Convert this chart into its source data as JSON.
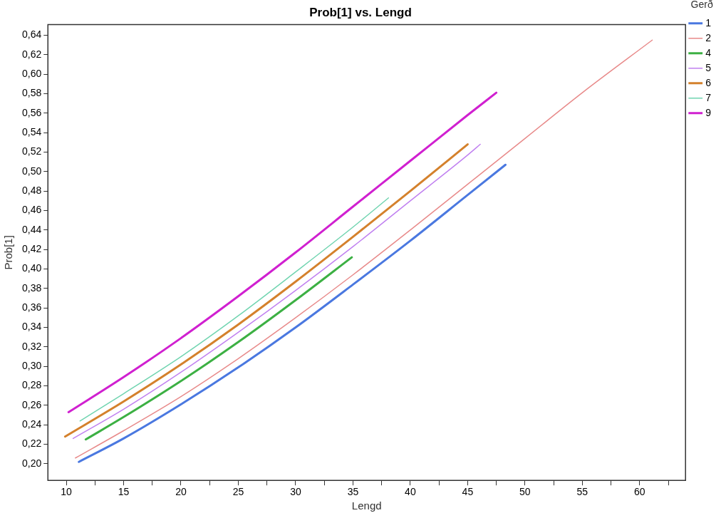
{
  "chart_data": {
    "type": "line",
    "title": "Prob[1] vs. Lengd",
    "xlabel": "Lengd",
    "ylabel": "Prob[1]",
    "legend_title": "Gerð",
    "legend": "top right",
    "grid": false,
    "marker": "none",
    "line_style": "solid",
    "xlim": [
      8.4,
      64.0
    ],
    "ylim": [
      0.183,
      0.651
    ],
    "xticks": [
      10,
      {
        "value": 12.5,
        "label": null
      },
      15,
      {
        "value": 17.5,
        "label": null
      },
      20,
      {
        "value": 22.5,
        "label": null
      },
      25,
      {
        "value": 27.5,
        "label": null
      },
      30,
      {
        "value": 32.5,
        "label": null
      },
      35,
      {
        "value": 37.5,
        "label": null
      },
      40,
      {
        "value": 42.5,
        "label": null
      },
      45,
      {
        "value": 47.5,
        "label": null
      },
      50,
      {
        "value": 52.5,
        "label": null
      },
      55,
      {
        "value": 57.5,
        "label": null
      },
      60,
      {
        "value": 62.5,
        "label": null
      }
    ],
    "yticks": [
      {
        "value": 0.2,
        "label": "0,20"
      },
      {
        "value": 0.22,
        "label": "0,22"
      },
      {
        "value": 0.24,
        "label": "0,24"
      },
      {
        "value": 0.26,
        "label": "0,26"
      },
      {
        "value": 0.28,
        "label": "0,28"
      },
      {
        "value": 0.3,
        "label": "0,30"
      },
      {
        "value": 0.32,
        "label": "0,32"
      },
      {
        "value": 0.34,
        "label": "0,34"
      },
      {
        "value": 0.36,
        "label": "0,36"
      },
      {
        "value": 0.38,
        "label": "0,38"
      },
      {
        "value": 0.4,
        "label": "0,40"
      },
      {
        "value": 0.42,
        "label": "0,42"
      },
      {
        "value": 0.44,
        "label": "0,44"
      },
      {
        "value": 0.46,
        "label": "0,46"
      },
      {
        "value": 0.48,
        "label": "0,48"
      },
      {
        "value": 0.5,
        "label": "0,50"
      },
      {
        "value": 0.52,
        "label": "0,52"
      },
      {
        "value": 0.54,
        "label": "0,54"
      },
      {
        "value": 0.56,
        "label": "0,56"
      },
      {
        "value": 0.58,
        "label": "0,58"
      },
      {
        "value": 0.6,
        "label": "0,60"
      },
      {
        "value": 0.62,
        "label": "0,62"
      },
      {
        "value": 0.64,
        "label": "0,64"
      }
    ],
    "series": [
      {
        "name": "1",
        "color": "#4a78e0",
        "x": [
          11.1,
          15,
          20,
          25,
          30,
          35,
          40,
          45,
          48.3
        ],
        "values": [
          0.202,
          0.226,
          0.261,
          0.299,
          0.34,
          0.384,
          0.429,
          0.476,
          0.507
        ]
      },
      {
        "name": "2",
        "color": "#e88a8a",
        "x": [
          10.8,
          15,
          20,
          25,
          30,
          35,
          40,
          45,
          50,
          55,
          61.1
        ],
        "values": [
          0.206,
          0.234,
          0.269,
          0.308,
          0.35,
          0.394,
          0.44,
          0.487,
          0.534,
          0.581,
          0.635
        ]
      },
      {
        "name": "4",
        "color": "#3cb043",
        "x": [
          11.7,
          15,
          20,
          25,
          30,
          34.9
        ],
        "values": [
          0.225,
          0.248,
          0.285,
          0.325,
          0.368,
          0.412
        ]
      },
      {
        "name": "5",
        "color": "#c080f0",
        "x": [
          10.6,
          15,
          20,
          25,
          30,
          35,
          40,
          45,
          46.1
        ],
        "values": [
          0.226,
          0.256,
          0.294,
          0.335,
          0.378,
          0.423,
          0.47,
          0.517,
          0.528
        ]
      },
      {
        "name": "6",
        "color": "#d4812c",
        "x": [
          9.9,
          15,
          20,
          25,
          30,
          35,
          40,
          45.0
        ],
        "values": [
          0.228,
          0.264,
          0.302,
          0.343,
          0.387,
          0.433,
          0.48,
          0.528
        ]
      },
      {
        "name": "7",
        "color": "#70d4b0",
        "x": [
          11.2,
          15,
          20,
          25,
          30,
          35,
          38.1
        ],
        "values": [
          0.244,
          0.272,
          0.31,
          0.352,
          0.397,
          0.443,
          0.473
        ]
      },
      {
        "name": "9",
        "color": "#d020d0",
        "x": [
          10.2,
          15,
          20,
          25,
          30,
          35,
          40,
          45,
          47.5
        ],
        "values": [
          0.253,
          0.289,
          0.329,
          0.372,
          0.417,
          0.464,
          0.511,
          0.558,
          0.581
        ]
      }
    ]
  }
}
